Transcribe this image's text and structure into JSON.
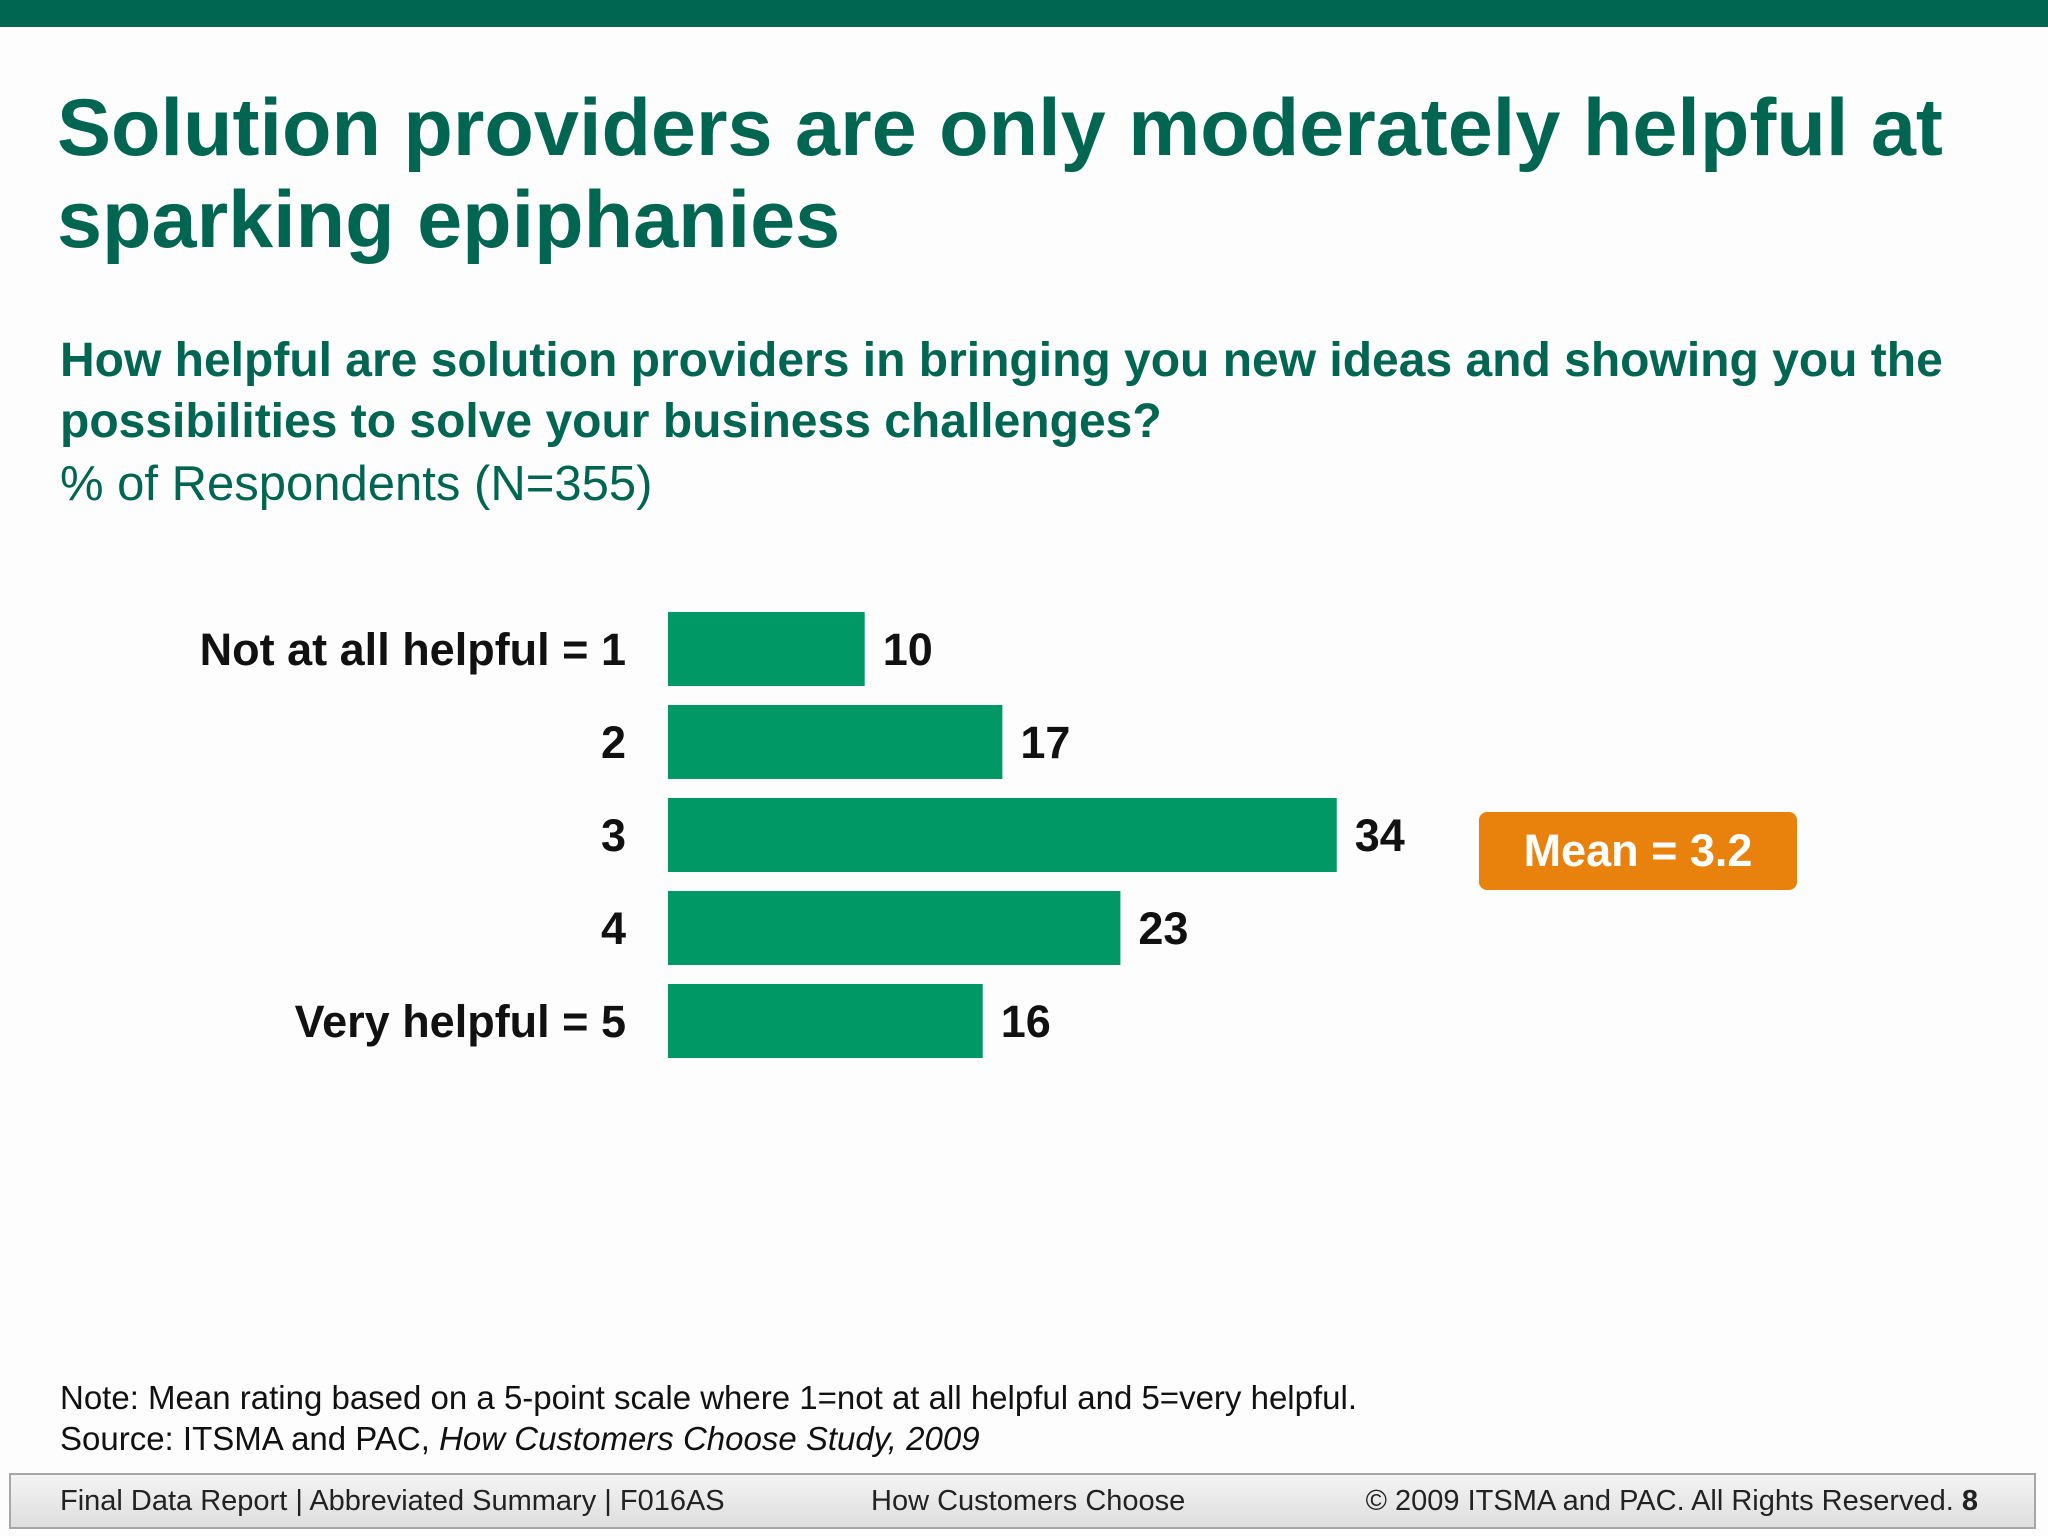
{
  "slide": {
    "title": "Solution providers are only moderately helpful at sparking epiphanies",
    "question": "How helpful are solution providers in bringing you new ideas and showing you the possibilities to solve your business challenges?",
    "respondents": "% of Respondents (N=355)",
    "mean_badge": "Mean = 3.2",
    "note": "Note: Mean rating based on a 5-point scale where 1=not at all helpful and 5=very helpful.",
    "source_prefix": "Source: ITSMA and PAC, ",
    "source_title": "How Customers Choose Study, 2009"
  },
  "footer": {
    "left": "Final Data Report | Abbreviated Summary | F016AS",
    "center": "How Customers Choose",
    "right": "© 2009 ITSMA and PAC. All Rights Reserved.",
    "page": "8"
  },
  "colors": {
    "brand": "#006652",
    "bar": "#009966",
    "mean_badge": "#e8820c"
  },
  "chart_data": {
    "type": "bar",
    "orientation": "horizontal",
    "categories": [
      "Not at all helpful = 1",
      "2",
      "3",
      "4",
      "Very helpful = 5"
    ],
    "values": [
      10,
      17,
      34,
      23,
      16
    ],
    "unit": "% of Respondents",
    "value_labels": [
      "10",
      "17",
      "34",
      "23",
      "16"
    ],
    "xlim": [
      0,
      34
    ],
    "grid": false,
    "legend": "none"
  }
}
